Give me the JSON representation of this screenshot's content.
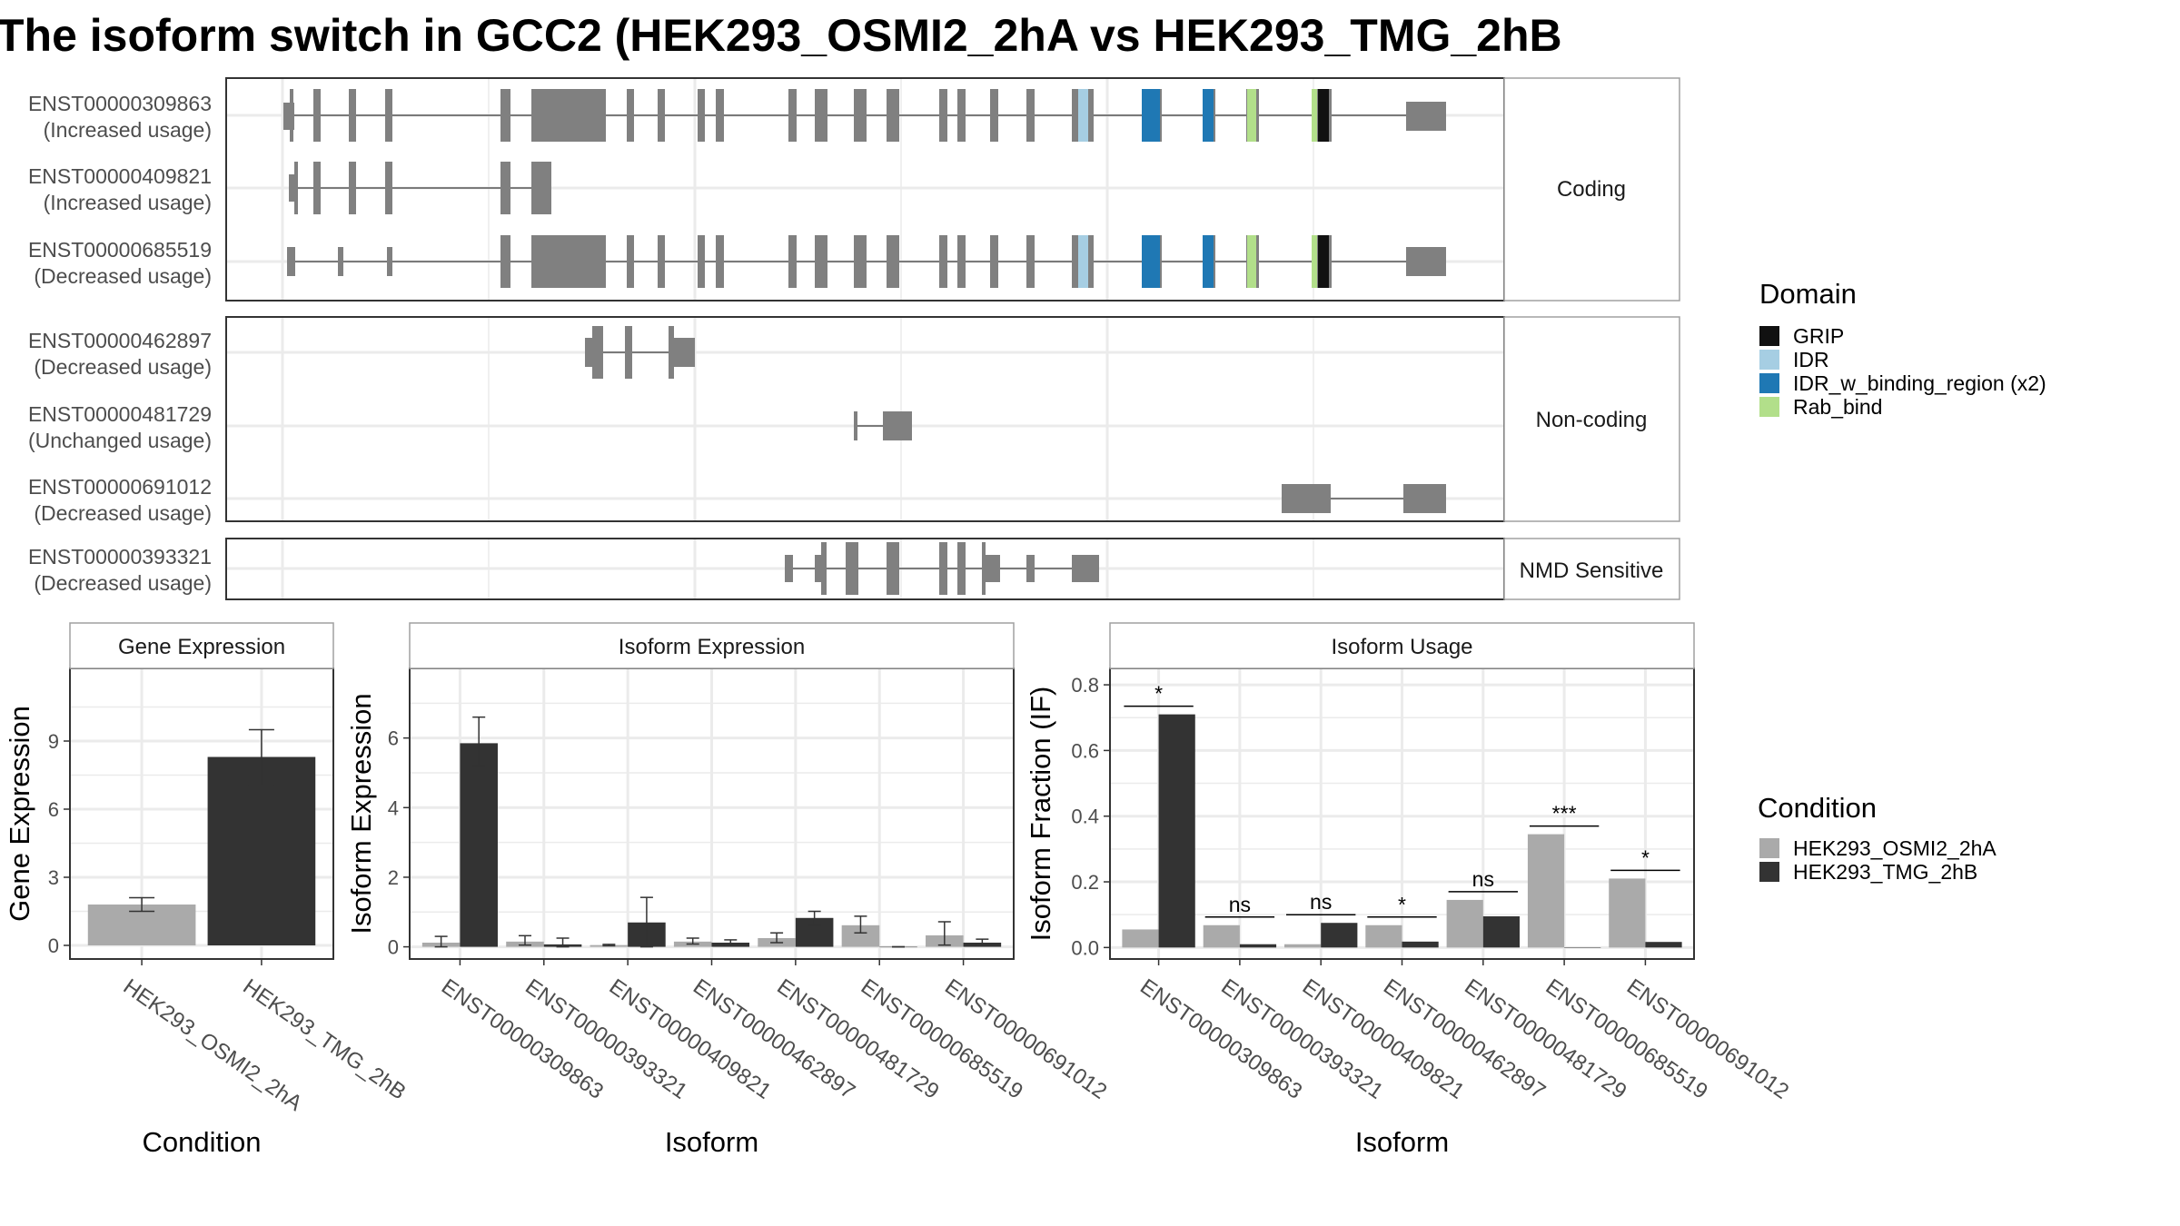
{
  "title": "The isoform switch in GCC2 (HEK293_OSMI2_2hA vs HEK293_TMG_2hB",
  "colors": {
    "exon": "#808080",
    "panel_border": "#333333",
    "strip_border": "#a0a0a0",
    "grid": "#ebebeb",
    "cond_a": "#aaaaaa",
    "cond_b": "#333333"
  },
  "structure": {
    "domain_legend": {
      "title": "Domain",
      "items": [
        {
          "label": "GRIP",
          "color": "#111111"
        },
        {
          "label": "IDR",
          "color": "#a6cee3"
        },
        {
          "label": "IDR_w_binding_region (x2)",
          "color": "#1f78b4"
        },
        {
          "label": "Rab_bind",
          "color": "#b2df8a"
        }
      ]
    },
    "panels": [
      {
        "label": "Coding",
        "transcripts": [
          {
            "id": "ENST00000309863",
            "usage": "(Increased usage)"
          },
          {
            "id": "ENST00000409821",
            "usage": "(Increased usage)"
          },
          {
            "id": "ENST00000685519",
            "usage": "(Decreased usage)"
          }
        ]
      },
      {
        "label": "Non-coding",
        "transcripts": [
          {
            "id": "ENST00000462897",
            "usage": "(Decreased usage)"
          },
          {
            "id": "ENST00000481729",
            "usage": "(Unchanged usage)"
          },
          {
            "id": "ENST00000691012",
            "usage": "(Decreased usage)"
          }
        ]
      },
      {
        "label": "NMD Sensitive",
        "transcripts": [
          {
            "id": "ENST00000393321",
            "usage": "(Decreased usage)"
          }
        ]
      }
    ]
  },
  "condition_legend": {
    "title": "Condition",
    "items": [
      {
        "label": "HEK293_OSMI2_2hA",
        "color": "#aaaaaa"
      },
      {
        "label": "HEK293_TMG_2hB",
        "color": "#333333"
      }
    ]
  },
  "chart_data": [
    {
      "type": "bar",
      "title": "Gene Expression",
      "xlabel": "Condition",
      "ylabel": "Gene Expression",
      "ylim": [
        -0.6,
        12.2
      ],
      "yticks": [
        0,
        3,
        6,
        9
      ],
      "categories": [
        "HEK293_OSMI2_2hA",
        "HEK293_TMG_2hB"
      ],
      "values": [
        1.8,
        8.3
      ],
      "error_low": [
        1.5,
        7.05
      ],
      "error_high": [
        2.1,
        9.5
      ]
    },
    {
      "type": "bar",
      "title": "Isoform Expression",
      "xlabel": "Isoform",
      "ylabel": "Isoform Expression",
      "ylim": [
        -0.35,
        8.0
      ],
      "yticks": [
        0,
        2,
        4,
        6
      ],
      "categories": [
        "ENST00000309863",
        "ENST00000393321",
        "ENST00000409821",
        "ENST00000462897",
        "ENST00000481729",
        "ENST00000685519",
        "ENST00000691012"
      ],
      "series": [
        {
          "name": "HEK293_OSMI2_2hA",
          "values": [
            0.12,
            0.15,
            0.05,
            0.15,
            0.25,
            0.62,
            0.33
          ],
          "error_low": [
            0.0,
            0.05,
            0.03,
            0.08,
            0.12,
            0.4,
            0.05
          ],
          "error_high": [
            0.3,
            0.32,
            0.07,
            0.25,
            0.4,
            0.88,
            0.72
          ]
        },
        {
          "name": "HEK293_TMG_2hB",
          "values": [
            5.85,
            0.07,
            0.7,
            0.12,
            0.83,
            0.0,
            0.12
          ],
          "error_low": [
            5.2,
            0.0,
            0.0,
            0.05,
            0.62,
            0.0,
            0.05
          ],
          "error_high": [
            6.6,
            0.25,
            1.42,
            0.2,
            1.02,
            0.0,
            0.22
          ]
        }
      ]
    },
    {
      "type": "bar",
      "title": "Isoform Usage",
      "xlabel": "Isoform",
      "ylabel": "Isoform Fraction (IF)",
      "ylim": [
        -0.035,
        0.85
      ],
      "yticks": [
        0.0,
        0.2,
        0.4,
        0.6,
        0.8
      ],
      "categories": [
        "ENST00000309863",
        "ENST00000393321",
        "ENST00000409821",
        "ENST00000462897",
        "ENST00000481729",
        "ENST00000685519",
        "ENST00000691012"
      ],
      "series": [
        {
          "name": "HEK293_OSMI2_2hA",
          "values": [
            0.055,
            0.068,
            0.01,
            0.068,
            0.145,
            0.345,
            0.21
          ]
        },
        {
          "name": "HEK293_TMG_2hB",
          "values": [
            0.71,
            0.01,
            0.075,
            0.018,
            0.095,
            0.0,
            0.017
          ]
        }
      ],
      "significance": [
        "*",
        "ns",
        "ns",
        "*",
        "ns",
        "***",
        "*"
      ]
    }
  ]
}
